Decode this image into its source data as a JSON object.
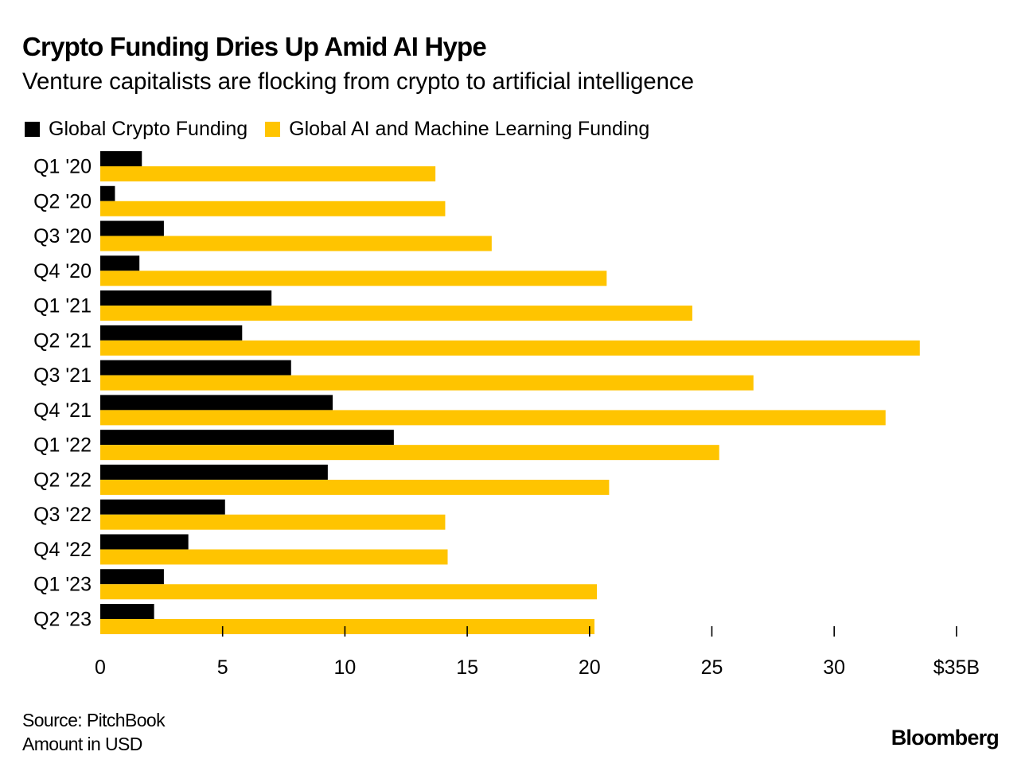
{
  "header": {
    "title": "Crypto Funding Dries Up Amid AI Hype",
    "subtitle": "Venture capitalists are flocking from crypto to artificial intelligence"
  },
  "legend": [
    {
      "label": "Global Crypto Funding",
      "color": "#000000"
    },
    {
      "label": "Global AI and Machine Learning Funding",
      "color": "#FFC400"
    }
  ],
  "footer": {
    "source": "Source: PitchBook",
    "note": "Amount in USD",
    "brand": "Bloomberg"
  },
  "chart_data": {
    "type": "bar",
    "orientation": "horizontal",
    "title": "Crypto Funding Dries Up Amid AI Hype",
    "subtitle": "Venture capitalists are flocking from crypto to artificial intelligence",
    "xlabel": "",
    "ylabel": "",
    "unit": "USD billions",
    "xlim": [
      0,
      35
    ],
    "x_ticks": [
      0,
      5,
      10,
      15,
      20,
      25,
      30,
      35
    ],
    "x_tick_labels": [
      "0",
      "5",
      "10",
      "15",
      "20",
      "25",
      "30",
      "$35B"
    ],
    "grid": false,
    "legend_position": "top-left",
    "categories": [
      "Q1 '20",
      "Q2 '20",
      "Q3 '20",
      "Q4 '20",
      "Q1 '21",
      "Q2 '21",
      "Q3 '21",
      "Q4 '21",
      "Q1 '22",
      "Q2 '22",
      "Q3 '22",
      "Q4 '22",
      "Q1 '23",
      "Q2 '23"
    ],
    "series": [
      {
        "name": "Global Crypto Funding",
        "color": "#000000",
        "values": [
          1.7,
          0.6,
          2.6,
          1.6,
          7.0,
          5.8,
          7.8,
          9.5,
          12.0,
          9.3,
          5.1,
          3.6,
          2.6,
          2.2
        ]
      },
      {
        "name": "Global AI and Machine Learning Funding",
        "color": "#FFC400",
        "values": [
          13.7,
          14.1,
          16.0,
          20.7,
          24.2,
          33.5,
          26.7,
          32.1,
          25.3,
          20.8,
          14.1,
          14.2,
          20.3,
          20.2
        ]
      }
    ]
  }
}
